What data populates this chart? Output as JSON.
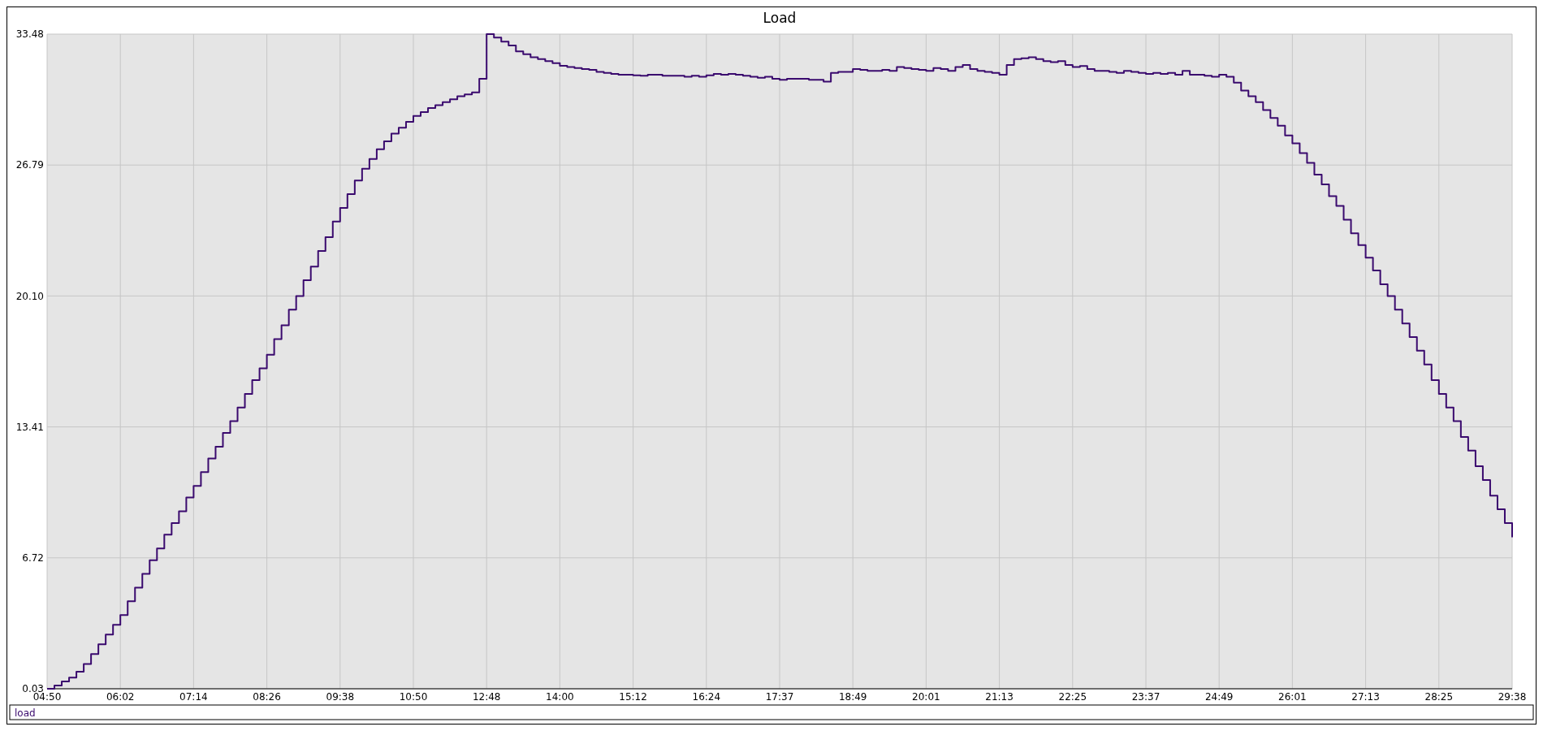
{
  "chart_data": {
    "type": "step",
    "title": "Load",
    "legend": "bottom",
    "grid": true,
    "categories": [
      "04:50",
      null,
      null,
      null,
      null,
      null,
      null,
      null,
      null,
      null,
      "06:02",
      null,
      null,
      null,
      null,
      null,
      null,
      null,
      null,
      null,
      "07:14",
      null,
      null,
      null,
      null,
      null,
      null,
      null,
      null,
      null,
      "08:26",
      null,
      null,
      null,
      null,
      null,
      null,
      null,
      null,
      null,
      "09:38",
      null,
      null,
      null,
      null,
      null,
      null,
      null,
      null,
      null,
      "10:50",
      null,
      null,
      null,
      null,
      null,
      null,
      null,
      null,
      null,
      "12:48",
      null,
      null,
      null,
      null,
      null,
      null,
      null,
      null,
      null,
      "14:00",
      null,
      null,
      null,
      null,
      null,
      null,
      null,
      null,
      null,
      "15:12",
      null,
      null,
      null,
      null,
      null,
      null,
      null,
      null,
      null,
      "16:24",
      null,
      null,
      null,
      null,
      null,
      null,
      null,
      null,
      null,
      "17:37",
      null,
      null,
      null,
      null,
      null,
      null,
      null,
      null,
      null,
      "18:49",
      null,
      null,
      null,
      null,
      null,
      null,
      null,
      null,
      null,
      "20:01",
      null,
      null,
      null,
      null,
      null,
      null,
      null,
      null,
      null,
      "21:13",
      null,
      null,
      null,
      null,
      null,
      null,
      null,
      null,
      null,
      "22:25",
      null,
      null,
      null,
      null,
      null,
      null,
      null,
      null,
      null,
      "23:37",
      null,
      null,
      null,
      null,
      null,
      null,
      null,
      null,
      null,
      "24:49",
      null,
      null,
      null,
      null,
      null,
      null,
      null,
      null,
      null,
      "26:01",
      null,
      null,
      null,
      null,
      null,
      null,
      null,
      null,
      null,
      "27:13",
      null,
      null,
      null,
      null,
      null,
      null,
      null,
      null,
      null,
      "28:25",
      null,
      null,
      null,
      null,
      null,
      null,
      null,
      null,
      null,
      "29:38"
    ],
    "ylim": [
      0.03,
      33.48
    ],
    "yticks": [
      {
        "value": 0.03,
        "label": "0.03"
      },
      {
        "value": 6.72,
        "label": "6.72"
      },
      {
        "value": 13.41,
        "label": "13.41"
      },
      {
        "value": 20.1,
        "label": "20.10"
      },
      {
        "value": 26.79,
        "label": "26.79"
      },
      {
        "value": 33.48,
        "label": "33.48"
      }
    ],
    "series": [
      {
        "name": "load",
        "color": "#3a0a6e",
        "values": [
          0.03,
          0.2,
          0.4,
          0.6,
          0.9,
          1.3,
          1.8,
          2.3,
          2.8,
          3.3,
          3.8,
          4.5,
          5.2,
          5.9,
          6.6,
          7.2,
          7.9,
          8.5,
          9.1,
          9.8,
          10.4,
          11.1,
          11.8,
          12.4,
          13.1,
          13.7,
          14.4,
          15.1,
          15.8,
          16.4,
          17.1,
          17.9,
          18.6,
          19.4,
          20.1,
          20.9,
          21.6,
          22.4,
          23.1,
          23.9,
          24.6,
          25.3,
          26.0,
          26.6,
          27.1,
          27.6,
          28.0,
          28.4,
          28.7,
          29.0,
          29.3,
          29.5,
          29.7,
          29.85,
          30.0,
          30.15,
          30.3,
          30.4,
          30.5,
          31.2,
          33.48,
          33.3,
          33.1,
          32.9,
          32.6,
          32.45,
          32.3,
          32.2,
          32.1,
          32.0,
          31.86,
          31.8,
          31.75,
          31.7,
          31.65,
          31.55,
          31.5,
          31.45,
          31.4,
          31.4,
          31.37,
          31.35,
          31.4,
          31.4,
          31.35,
          31.35,
          31.35,
          31.3,
          31.35,
          31.3,
          31.37,
          31.45,
          31.4,
          31.45,
          31.4,
          31.35,
          31.3,
          31.25,
          31.3,
          31.2,
          31.15,
          31.2,
          31.2,
          31.2,
          31.15,
          31.15,
          31.05,
          31.5,
          31.55,
          31.55,
          31.7,
          31.65,
          31.6,
          31.6,
          31.65,
          31.6,
          31.8,
          31.75,
          31.7,
          31.65,
          31.6,
          31.75,
          31.7,
          31.6,
          31.8,
          31.9,
          31.7,
          31.6,
          31.55,
          31.5,
          31.4,
          31.9,
          32.2,
          32.25,
          32.3,
          32.2,
          32.1,
          32.05,
          32.1,
          31.9,
          31.8,
          31.85,
          31.7,
          31.6,
          31.6,
          31.55,
          31.5,
          31.6,
          31.55,
          31.5,
          31.45,
          31.5,
          31.45,
          31.5,
          31.4,
          31.6,
          31.4,
          31.4,
          31.35,
          31.3,
          31.4,
          31.3,
          31.0,
          30.6,
          30.3,
          30.0,
          29.6,
          29.2,
          28.8,
          28.3,
          27.9,
          27.4,
          26.9,
          26.3,
          25.8,
          25.2,
          24.7,
          24.0,
          23.3,
          22.7,
          22.06,
          21.4,
          20.7,
          20.1,
          19.4,
          18.7,
          18.0,
          17.3,
          16.6,
          15.8,
          15.1,
          14.4,
          13.7,
          12.9,
          12.2,
          11.4,
          10.7,
          9.9,
          9.2,
          8.5,
          7.77
        ]
      }
    ]
  }
}
